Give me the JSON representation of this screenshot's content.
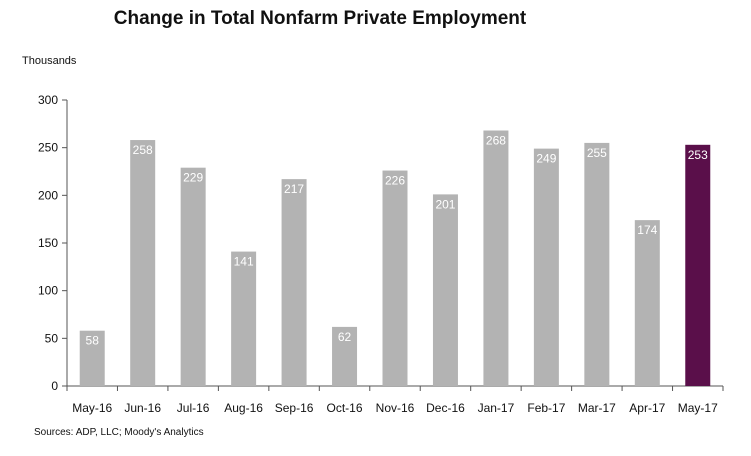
{
  "chart_data": {
    "type": "bar",
    "title": "Change in Total Nonfarm Private Employment",
    "ylabel": "Thousands",
    "xlabel": "",
    "source": "Sources: ADP, LLC; Moody's Analytics",
    "ylim": [
      0,
      300
    ],
    "yticks": [
      0,
      50,
      100,
      150,
      200,
      250,
      300
    ],
    "categories": [
      "May-16",
      "Jun-16",
      "Jul-16",
      "Aug-16",
      "Sep-16",
      "Oct-16",
      "Nov-16",
      "Dec-16",
      "Jan-17",
      "Feb-17",
      "Mar-17",
      "Apr-17",
      "May-17"
    ],
    "values": [
      58,
      258,
      229,
      141,
      217,
      62,
      226,
      201,
      268,
      249,
      255,
      174,
      253
    ],
    "data_labels": [
      "58",
      "258",
      "229",
      "141",
      "217",
      "62",
      "226",
      "201",
      "268",
      "249",
      "255",
      "174",
      "253"
    ],
    "bar_color": "#b3b3b3",
    "highlight_color": "#5a0f4a",
    "highlight_index": 12,
    "grid": false,
    "legend": "none"
  }
}
